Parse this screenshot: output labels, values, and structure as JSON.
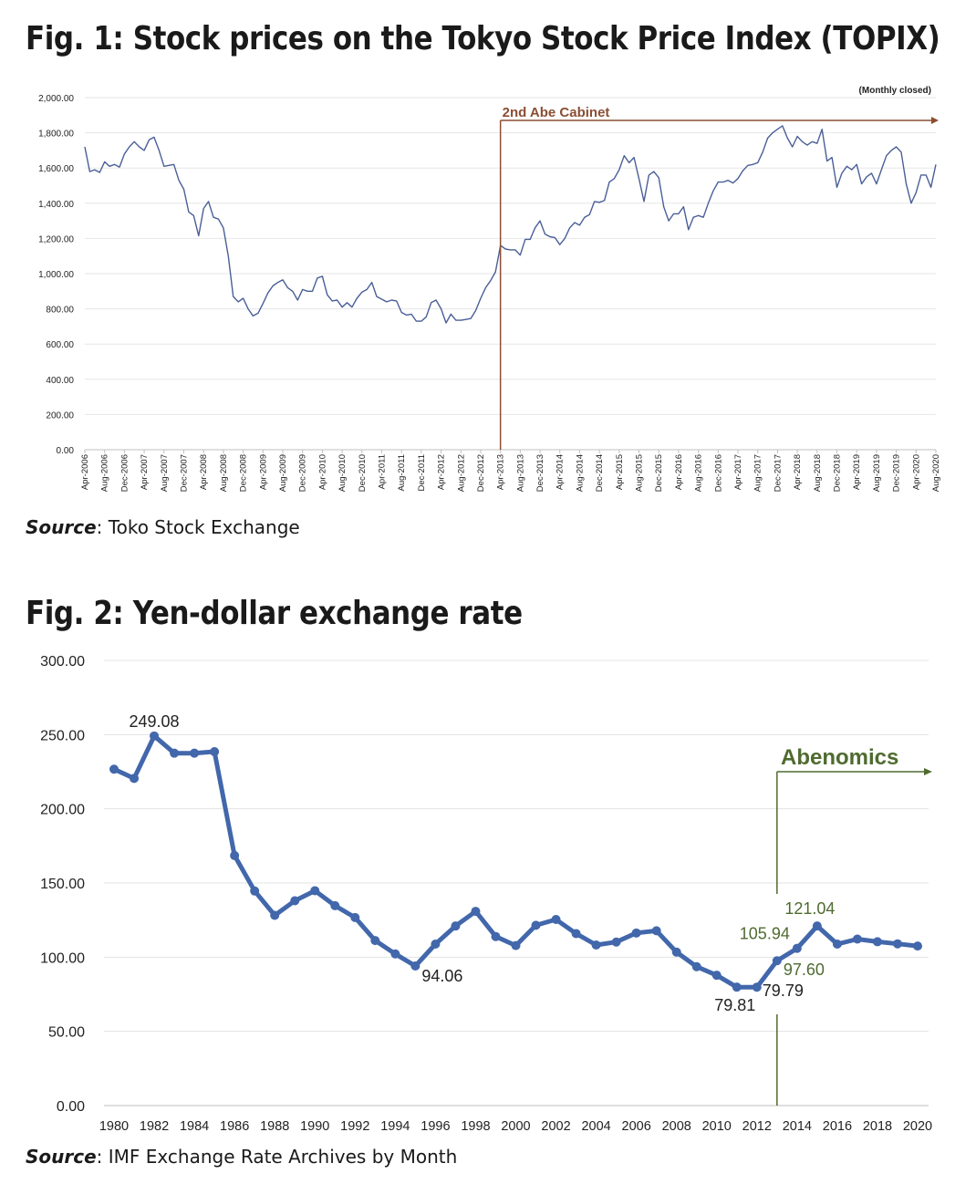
{
  "figure1": {
    "title": "Fig. 1: Stock prices on the Tokyo Stock Price Index (TOPIX)",
    "note": "(Monthly closed)",
    "annotation": "2nd Abe Cabinet",
    "source_label": "Source",
    "source_text": ": Toko Stock Exchange",
    "line_color": "#4a5f97",
    "annotation_color": "#8b4e33"
  },
  "figure2": {
    "title": "Fig. 2: Yen-dollar exchange rate",
    "annotation": "Abenomics",
    "source_label": "Source",
    "source_text": ":  IMF Exchange Rate Archives by Month",
    "line_color": "#4267ab",
    "annotation_color": "#4f6b30"
  },
  "chart_data": [
    {
      "type": "line",
      "title": "Fig. 1: Stock prices on the Tokyo Stock Price Index (TOPIX)",
      "ylim": [
        0,
        2000
      ],
      "yticks": [
        "0.00",
        "200.00",
        "400.00",
        "600.00",
        "800.00",
        "1,000.00",
        "1,200.00",
        "1,400.00",
        "1,600.00",
        "1,800.00",
        "2,000.00"
      ],
      "ytick_values": [
        0,
        200,
        400,
        600,
        800,
        1000,
        1200,
        1400,
        1600,
        1800,
        2000
      ],
      "xticks": [
        "Apr-2006",
        "Aug-2006",
        "Dec-2006",
        "Apr-2007",
        "Aug-2007",
        "Dec-2007",
        "Apr-2008",
        "Aug-2008",
        "Dec-2008",
        "Apr-2009",
        "Aug-2009",
        "Dec-2009",
        "Apr-2010",
        "Aug-2010",
        "Dec-2010",
        "Apr-2011",
        "Aug-2011",
        "Dec-2011",
        "Apr-2012",
        "Aug-2012",
        "Dec-2012",
        "Apr-2013",
        "Aug-2013",
        "Dec-2013",
        "Apr-2014",
        "Aug-2014",
        "Dec-2014",
        "Apr-2015",
        "Aug-2015",
        "Dec-2015",
        "Apr-2016",
        "Aug-2016",
        "Dec-2016",
        "Apr-2017",
        "Aug-2017",
        "Dec-2017",
        "Apr-2018",
        "Aug-2018",
        "Dec-2018",
        "Apr-2019",
        "Aug-2019",
        "Dec-2019",
        "Apr-2020",
        "Aug-2020"
      ],
      "x_start": "Apr-2006",
      "annotation_x": "Apr-2013",
      "series": [
        {
          "values": [
            1720,
            1580,
            1590,
            1575,
            1635,
            1610,
            1620,
            1605,
            1680,
            1720,
            1750,
            1720,
            1700,
            1760,
            1775,
            1700,
            1610,
            1615,
            1620,
            1530,
            1480,
            1350,
            1330,
            1215,
            1370,
            1410,
            1320,
            1310,
            1260,
            1100,
            870,
            840,
            860,
            800,
            760,
            775,
            830,
            890,
            930,
            950,
            965,
            920,
            900,
            850,
            910,
            900,
            900,
            975,
            985,
            880,
            845,
            850,
            810,
            835,
            810,
            860,
            895,
            910,
            950,
            870,
            855,
            840,
            850,
            845,
            780,
            765,
            770,
            730,
            730,
            755,
            835,
            850,
            800,
            720,
            770,
            735,
            735,
            740,
            745,
            790,
            860,
            920,
            960,
            1010,
            1160,
            1140,
            1135,
            1135,
            1105,
            1195,
            1195,
            1260,
            1300,
            1225,
            1210,
            1205,
            1165,
            1200,
            1260,
            1290,
            1275,
            1320,
            1335,
            1410,
            1405,
            1415,
            1520,
            1540,
            1590,
            1670,
            1630,
            1660,
            1540,
            1410,
            1560,
            1580,
            1545,
            1380,
            1300,
            1340,
            1340,
            1380,
            1250,
            1320,
            1330,
            1320,
            1400,
            1470,
            1520,
            1520,
            1530,
            1515,
            1540,
            1585,
            1615,
            1620,
            1630,
            1690,
            1770,
            1800,
            1820,
            1840,
            1770,
            1720,
            1780,
            1750,
            1730,
            1750,
            1740,
            1820,
            1640,
            1660,
            1490,
            1570,
            1610,
            1590,
            1620,
            1510,
            1550,
            1570,
            1510,
            1590,
            1670,
            1700,
            1720,
            1690,
            1510,
            1400,
            1460,
            1560,
            1560,
            1490,
            1620
          ]
        }
      ]
    },
    {
      "type": "line",
      "title": "Fig. 2: Yen-dollar exchange rate",
      "ylim": [
        0,
        300
      ],
      "yticks": [
        "0.00",
        "50.00",
        "100.00",
        "150.00",
        "200.00",
        "250.00",
        "300.00"
      ],
      "ytick_values": [
        0,
        50,
        100,
        150,
        200,
        250,
        300
      ],
      "xticks": [
        "1980",
        "1982",
        "1984",
        "1986",
        "1988",
        "1990",
        "1992",
        "1994",
        "1996",
        "1998",
        "2000",
        "2002",
        "2004",
        "2006",
        "2008",
        "2010",
        "2012",
        "2014",
        "2016",
        "2018",
        "2020"
      ],
      "x": [
        1980,
        1981,
        1982,
        1983,
        1984,
        1985,
        1986,
        1987,
        1988,
        1989,
        1990,
        1991,
        1992,
        1993,
        1994,
        1995,
        1996,
        1997,
        1998,
        1999,
        2000,
        2001,
        2002,
        2003,
        2004,
        2005,
        2006,
        2007,
        2008,
        2009,
        2010,
        2011,
        2012,
        2013,
        2014,
        2015,
        2016,
        2017,
        2018,
        2019,
        2020
      ],
      "annotation_x": 2013,
      "series": [
        {
          "values": [
            226.7,
            220.5,
            249.08,
            237.5,
            237.5,
            238.5,
            168.5,
            144.6,
            128.2,
            138.0,
            144.8,
            134.7,
            126.7,
            111.2,
            102.2,
            94.06,
            108.8,
            121.0,
            130.9,
            113.9,
            107.8,
            121.5,
            125.4,
            115.9,
            108.2,
            110.2,
            116.3,
            117.8,
            103.4,
            93.6,
            87.8,
            79.81,
            79.79,
            97.6,
            105.94,
            121.04,
            108.8,
            112.2,
            110.4,
            109.0,
            107.5
          ]
        }
      ],
      "data_labels": [
        {
          "x": 1982,
          "text": "249.08"
        },
        {
          "x": 1995,
          "text": "94.06"
        },
        {
          "x": 2011,
          "text": "79.81"
        },
        {
          "x": 2012,
          "text": "79.79"
        },
        {
          "x": 2013,
          "text": "97.60"
        },
        {
          "x": 2014,
          "text": "105.94"
        },
        {
          "x": 2015,
          "text": "121.04"
        }
      ]
    }
  ]
}
